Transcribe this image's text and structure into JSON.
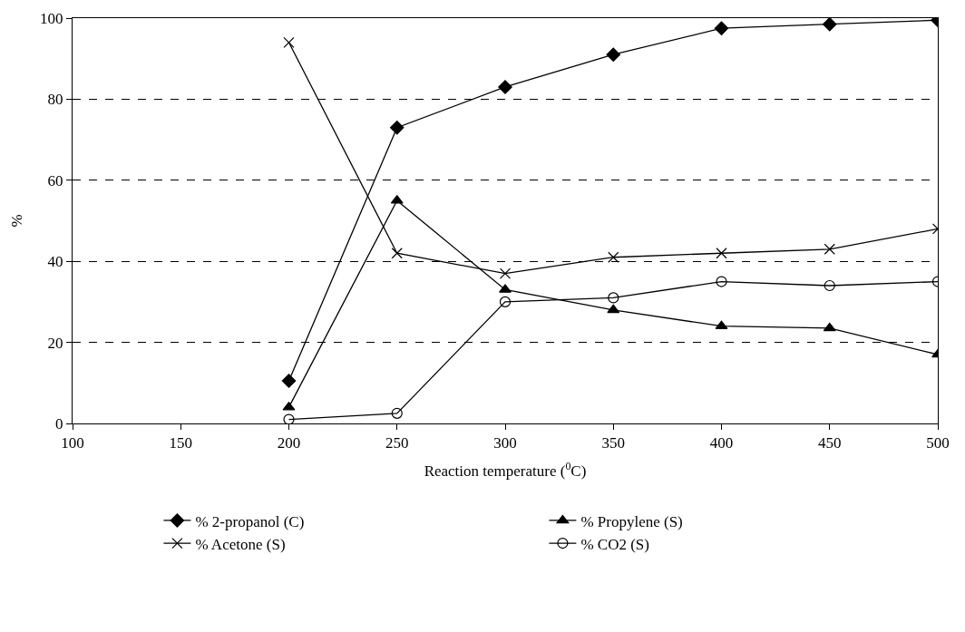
{
  "chart_data": {
    "type": "line",
    "xlabel": "Reaction temperature ($^{0}$C)",
    "ylabel": "%",
    "x": [
      200,
      250,
      300,
      350,
      400,
      450,
      500
    ],
    "series": [
      {
        "name": "% 2-propanol (C)",
        "color": "#000000",
        "marker": "diamond",
        "values": [
          10.5,
          73,
          83,
          91,
          97.5,
          98.5,
          99.5
        ]
      },
      {
        "name": "% Propylene (S)",
        "color": "#000000",
        "marker": "triangle",
        "values": [
          4,
          55,
          33,
          28,
          24,
          23.5,
          17
        ]
      },
      {
        "name": "% Acetone (S)",
        "color": "#000000",
        "marker": "cross",
        "values": [
          94,
          42,
          37,
          41,
          42,
          43,
          48
        ]
      },
      {
        "name": "% CO2 (S)",
        "color": "#000000",
        "marker": "circle",
        "values": [
          1,
          2.5,
          30,
          31,
          35,
          34,
          35
        ]
      }
    ],
    "xlim": [
      100,
      500
    ],
    "xticks": [
      100,
      150,
      200,
      250,
      300,
      350,
      400,
      450,
      500
    ],
    "ylim": [
      0,
      100
    ],
    "yticks": [
      0,
      20,
      40,
      60,
      80,
      100
    ],
    "grid": "y",
    "legend": "bottom",
    "line_style": "solid"
  }
}
